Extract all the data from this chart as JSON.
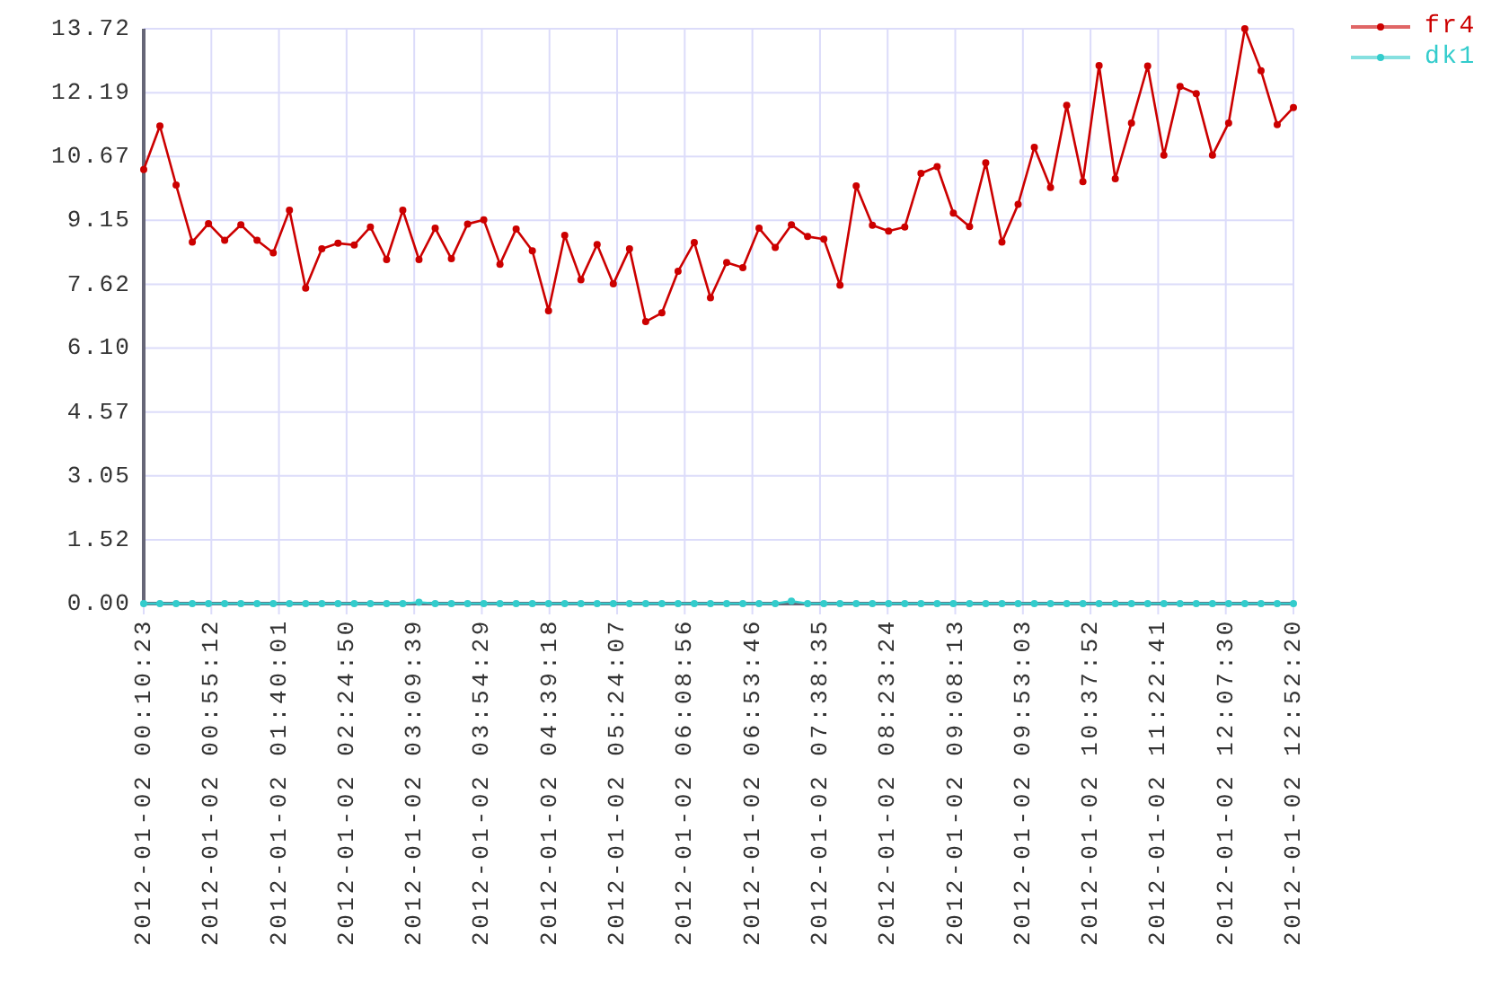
{
  "chart_data": {
    "type": "line",
    "x": [
      "2012-01-02T00:10:23",
      "2012-01-02T00:21:07",
      "2012-01-02T00:31:51",
      "2012-01-02T00:42:35",
      "2012-01-02T00:53:19",
      "2012-01-02T01:04:02",
      "2012-01-02T01:14:46",
      "2012-01-02T01:25:30",
      "2012-01-02T01:36:14",
      "2012-01-02T01:46:58",
      "2012-01-02T01:57:42",
      "2012-01-02T02:08:26",
      "2012-01-02T02:19:10",
      "2012-01-02T02:29:54",
      "2012-01-02T02:40:37",
      "2012-01-02T02:51:21",
      "2012-01-02T03:02:05",
      "2012-01-02T03:12:49",
      "2012-01-02T03:23:33",
      "2012-01-02T03:34:17",
      "2012-01-02T03:45:01",
      "2012-01-02T03:55:45",
      "2012-01-02T04:06:29",
      "2012-01-02T04:17:12",
      "2012-01-02T04:27:56",
      "2012-01-02T04:38:40",
      "2012-01-02T04:49:24",
      "2012-01-02T05:00:08",
      "2012-01-02T05:10:52",
      "2012-01-02T05:21:36",
      "2012-01-02T05:32:20",
      "2012-01-02T05:43:04",
      "2012-01-02T05:53:47",
      "2012-01-02T06:04:31",
      "2012-01-02T06:15:15",
      "2012-01-02T06:25:59",
      "2012-01-02T06:36:43",
      "2012-01-02T06:47:27",
      "2012-01-02T06:58:11",
      "2012-01-02T07:08:55",
      "2012-01-02T07:19:38",
      "2012-01-02T07:30:22",
      "2012-01-02T07:41:06",
      "2012-01-02T07:51:50",
      "2012-01-02T08:02:34",
      "2012-01-02T08:13:18",
      "2012-01-02T08:24:02",
      "2012-01-02T08:34:46",
      "2012-01-02T08:45:30",
      "2012-01-02T08:56:13",
      "2012-01-02T09:06:57",
      "2012-01-02T09:17:41",
      "2012-01-02T09:28:25",
      "2012-01-02T09:39:09",
      "2012-01-02T09:49:53",
      "2012-01-02T10:00:37",
      "2012-01-02T10:11:21",
      "2012-01-02T10:22:05",
      "2012-01-02T10:32:48",
      "2012-01-02T10:43:32",
      "2012-01-02T10:54:16",
      "2012-01-02T11:05:00",
      "2012-01-02T11:15:44",
      "2012-01-02T11:26:28",
      "2012-01-02T11:37:12",
      "2012-01-02T11:47:56",
      "2012-01-02T11:58:40",
      "2012-01-02T12:09:23",
      "2012-01-02T12:20:07",
      "2012-01-02T12:30:51",
      "2012-01-02T12:41:35",
      "2012-01-02T12:52:20"
    ],
    "series": [
      {
        "name": "fr4",
        "color": "#cc0000",
        "values": [
          10.36,
          11.4,
          9.99,
          8.63,
          9.07,
          8.67,
          9.04,
          8.67,
          8.37,
          9.39,
          7.53,
          8.47,
          8.6,
          8.56,
          8.99,
          8.21,
          9.39,
          8.21,
          8.96,
          8.23,
          9.06,
          9.16,
          8.1,
          8.94,
          8.42,
          6.99,
          8.79,
          7.73,
          8.57,
          7.63,
          8.47,
          6.73,
          6.94,
          7.93,
          8.62,
          7.3,
          8.14,
          8.02,
          8.96,
          8.5,
          9.04,
          8.76,
          8.7,
          7.6,
          9.97,
          9.03,
          8.89,
          8.99,
          10.27,
          10.43,
          9.32,
          9.0,
          10.52,
          8.63,
          9.53,
          10.89,
          9.93,
          11.89,
          10.07,
          12.84,
          10.14,
          11.47,
          12.83,
          10.7,
          12.34,
          12.17,
          10.7,
          11.47,
          13.72,
          12.72,
          11.43,
          11.84
        ]
      },
      {
        "name": "dk1",
        "color": "#33cccc",
        "values": [
          0,
          0,
          0,
          0,
          0,
          0,
          0,
          0,
          0,
          0,
          0,
          0,
          0,
          0,
          0,
          0,
          0,
          0.03,
          0,
          0,
          0,
          0,
          0,
          0,
          0,
          0,
          0,
          0,
          0,
          0,
          0,
          0,
          0,
          0,
          0,
          0,
          0,
          0,
          0,
          0,
          0.06,
          0,
          0,
          0,
          0,
          0,
          0,
          0,
          0,
          0,
          0,
          0,
          0,
          0,
          0,
          0,
          0,
          0,
          0,
          0,
          0,
          0,
          0,
          0,
          0,
          0,
          0,
          0,
          0,
          0,
          0,
          0
        ]
      }
    ],
    "xlim": [
      "2012-01-02T00:10:23",
      "2012-01-02T12:52:20"
    ],
    "xticks": [
      {
        "value": "2012-01-02T00:10:23",
        "label": "2012-01-02 00:10:23"
      },
      {
        "value": "2012-01-02T00:55:12",
        "label": "2012-01-02 00:55:12"
      },
      {
        "value": "2012-01-02T01:40:01",
        "label": "2012-01-02 01:40:01"
      },
      {
        "value": "2012-01-02T02:24:50",
        "label": "2012-01-02 02:24:50"
      },
      {
        "value": "2012-01-02T03:09:39",
        "label": "2012-01-02 03:09:39"
      },
      {
        "value": "2012-01-02T03:54:29",
        "label": "2012-01-02 03:54:29"
      },
      {
        "value": "2012-01-02T04:39:18",
        "label": "2012-01-02 04:39:18"
      },
      {
        "value": "2012-01-02T05:24:07",
        "label": "2012-01-02 05:24:07"
      },
      {
        "value": "2012-01-02T06:08:56",
        "label": "2012-01-02 06:08:56"
      },
      {
        "value": "2012-01-02T06:53:46",
        "label": "2012-01-02 06:53:46"
      },
      {
        "value": "2012-01-02T07:38:35",
        "label": "2012-01-02 07:38:35"
      },
      {
        "value": "2012-01-02T08:23:24",
        "label": "2012-01-02 08:23:24"
      },
      {
        "value": "2012-01-02T09:08:13",
        "label": "2012-01-02 09:08:13"
      },
      {
        "value": "2012-01-02T09:53:03",
        "label": "2012-01-02 09:53:03"
      },
      {
        "value": "2012-01-02T10:37:52",
        "label": "2012-01-02 10:37:52"
      },
      {
        "value": "2012-01-02T11:22:41",
        "label": "2012-01-02 11:22:41"
      },
      {
        "value": "2012-01-02T12:07:30",
        "label": "2012-01-02 12:07:30"
      },
      {
        "value": "2012-01-02T12:52:20",
        "label": "2012-01-02 12:52:20"
      }
    ],
    "ylim": [
      0,
      13.72
    ],
    "yticks": [
      {
        "value": 0,
        "label": "0.00"
      },
      {
        "value": 1.52,
        "label": "1.52"
      },
      {
        "value": 3.05,
        "label": "3.05"
      },
      {
        "value": 4.57,
        "label": "4.57"
      },
      {
        "value": 6.1,
        "label": "6.10"
      },
      {
        "value": 7.62,
        "label": "7.62"
      },
      {
        "value": 9.15,
        "label": "9.15"
      },
      {
        "value": 10.67,
        "label": "10.67"
      },
      {
        "value": 12.19,
        "label": "12.19"
      },
      {
        "value": 13.72,
        "label": "13.72"
      }
    ],
    "grid": true,
    "legend": "top right",
    "marker": "circle"
  }
}
